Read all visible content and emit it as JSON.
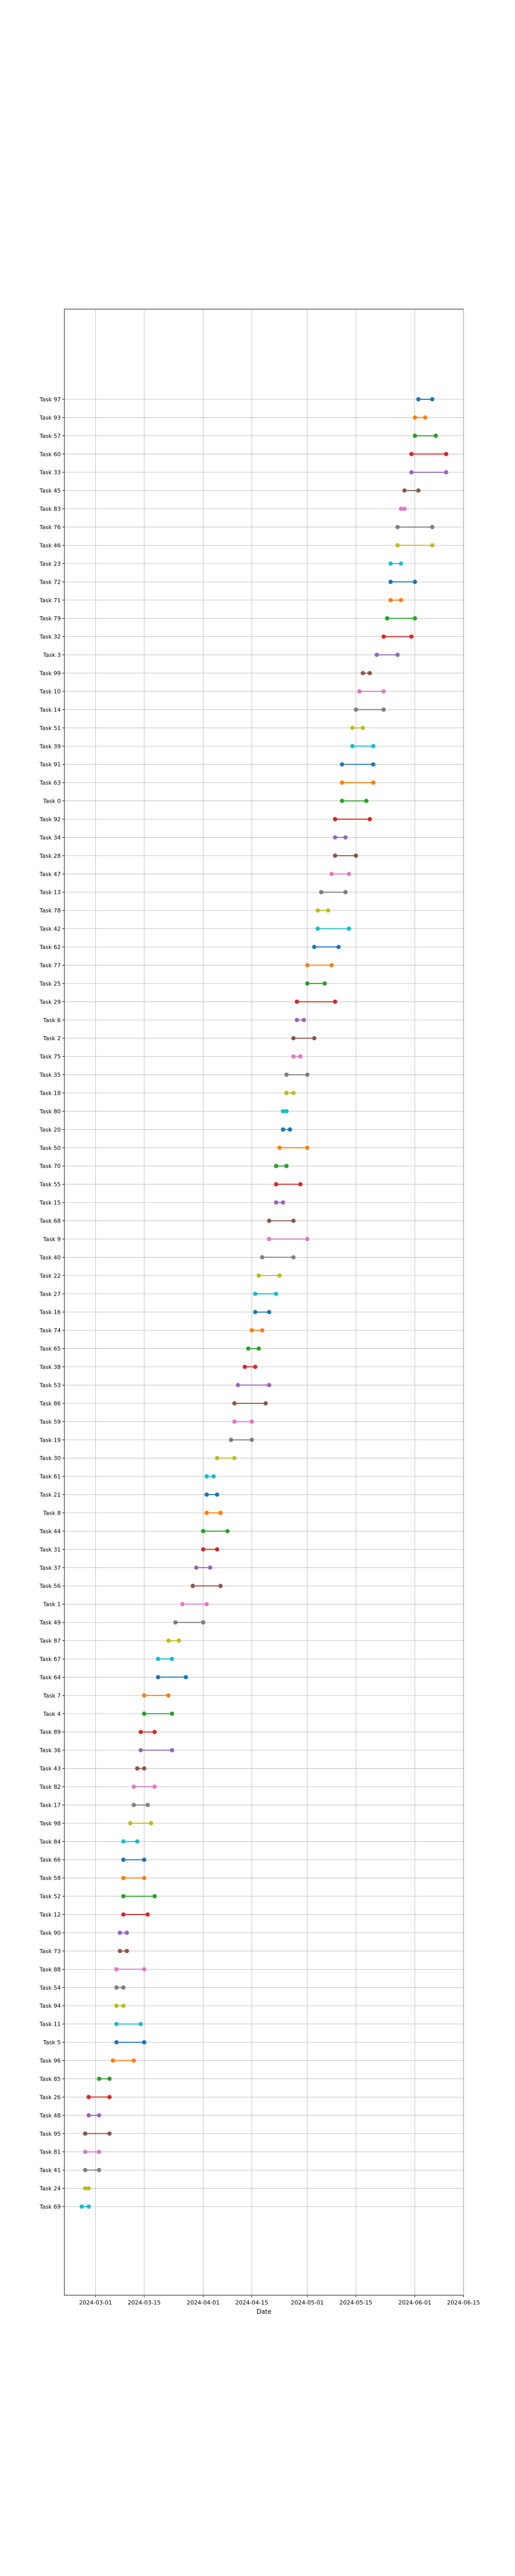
{
  "chart_data": {
    "type": "dumbbell",
    "title": "",
    "xlabel": "Date",
    "ylabel": "",
    "grid": true,
    "x_axis": {
      "type": "date",
      "min": "2024-02-21",
      "max": "2024-06-15",
      "ticks": [
        "2024-03-01",
        "2024-03-15",
        "2024-04-01",
        "2024-04-15",
        "2024-05-01",
        "2024-05-15",
        "2024-06-01",
        "2024-06-15"
      ]
    },
    "color_cycle": [
      "#1f77b4",
      "#ff7f0e",
      "#2ca02c",
      "#d62728",
      "#9467bd",
      "#8c564b",
      "#e377c2",
      "#7f7f7f",
      "#bcbd22",
      "#17becf"
    ],
    "tasks": [
      {
        "name": "Task 97",
        "start": "2024-06-02",
        "end": "2024-06-06"
      },
      {
        "name": "Task 93",
        "start": "2024-06-01",
        "end": "2024-06-04"
      },
      {
        "name": "Task 57",
        "start": "2024-06-01",
        "end": "2024-06-07"
      },
      {
        "name": "Task 60",
        "start": "2024-05-31",
        "end": "2024-06-10"
      },
      {
        "name": "Task 33",
        "start": "2024-05-31",
        "end": "2024-06-10"
      },
      {
        "name": "Task 45",
        "start": "2024-05-29",
        "end": "2024-06-02"
      },
      {
        "name": "Task 83",
        "start": "2024-05-28",
        "end": "2024-05-29"
      },
      {
        "name": "Task 76",
        "start": "2024-05-27",
        "end": "2024-06-06"
      },
      {
        "name": "Task 46",
        "start": "2024-05-27",
        "end": "2024-06-06"
      },
      {
        "name": "Task 23",
        "start": "2024-05-25",
        "end": "2024-05-28"
      },
      {
        "name": "Task 72",
        "start": "2024-05-25",
        "end": "2024-06-01"
      },
      {
        "name": "Task 71",
        "start": "2024-05-25",
        "end": "2024-05-28"
      },
      {
        "name": "Task 79",
        "start": "2024-05-24",
        "end": "2024-06-01"
      },
      {
        "name": "Task 32",
        "start": "2024-05-23",
        "end": "2024-05-31"
      },
      {
        "name": "Task 3",
        "start": "2024-05-21",
        "end": "2024-05-27"
      },
      {
        "name": "Task 99",
        "start": "2024-05-17",
        "end": "2024-05-19"
      },
      {
        "name": "Task 10",
        "start": "2024-05-16",
        "end": "2024-05-23"
      },
      {
        "name": "Task 14",
        "start": "2024-05-15",
        "end": "2024-05-23"
      },
      {
        "name": "Task 51",
        "start": "2024-05-14",
        "end": "2024-05-17"
      },
      {
        "name": "Task 39",
        "start": "2024-05-14",
        "end": "2024-05-20"
      },
      {
        "name": "Task 91",
        "start": "2024-05-11",
        "end": "2024-05-20"
      },
      {
        "name": "Task 63",
        "start": "2024-05-11",
        "end": "2024-05-20"
      },
      {
        "name": "Task 0",
        "start": "2024-05-11",
        "end": "2024-05-18"
      },
      {
        "name": "Task 92",
        "start": "2024-05-09",
        "end": "2024-05-19"
      },
      {
        "name": "Task 34",
        "start": "2024-05-09",
        "end": "2024-05-12"
      },
      {
        "name": "Task 28",
        "start": "2024-05-09",
        "end": "2024-05-15"
      },
      {
        "name": "Task 47",
        "start": "2024-05-08",
        "end": "2024-05-13"
      },
      {
        "name": "Task 13",
        "start": "2024-05-05",
        "end": "2024-05-12"
      },
      {
        "name": "Task 78",
        "start": "2024-05-04",
        "end": "2024-05-07"
      },
      {
        "name": "Task 42",
        "start": "2024-05-04",
        "end": "2024-05-13"
      },
      {
        "name": "Task 62",
        "start": "2024-05-03",
        "end": "2024-05-10"
      },
      {
        "name": "Task 77",
        "start": "2024-05-01",
        "end": "2024-05-08"
      },
      {
        "name": "Task 25",
        "start": "2024-05-01",
        "end": "2024-05-06"
      },
      {
        "name": "Task 29",
        "start": "2024-04-28",
        "end": "2024-05-09"
      },
      {
        "name": "Task 6",
        "start": "2024-04-28",
        "end": "2024-04-30"
      },
      {
        "name": "Task 2",
        "start": "2024-04-27",
        "end": "2024-05-03"
      },
      {
        "name": "Task 75",
        "start": "2024-04-27",
        "end": "2024-04-29"
      },
      {
        "name": "Task 35",
        "start": "2024-04-25",
        "end": "2024-05-01"
      },
      {
        "name": "Task 18",
        "start": "2024-04-25",
        "end": "2024-04-27"
      },
      {
        "name": "Task 80",
        "start": "2024-04-24",
        "end": "2024-04-25"
      },
      {
        "name": "Task 20",
        "start": "2024-04-24",
        "end": "2024-04-26"
      },
      {
        "name": "Task 50",
        "start": "2024-04-23",
        "end": "2024-05-01"
      },
      {
        "name": "Task 70",
        "start": "2024-04-22",
        "end": "2024-04-25"
      },
      {
        "name": "Task 55",
        "start": "2024-04-22",
        "end": "2024-04-29"
      },
      {
        "name": "Task 15",
        "start": "2024-04-22",
        "end": "2024-04-24"
      },
      {
        "name": "Task 68",
        "start": "2024-04-20",
        "end": "2024-04-27"
      },
      {
        "name": "Task 9",
        "start": "2024-04-20",
        "end": "2024-05-01"
      },
      {
        "name": "Task 40",
        "start": "2024-04-18",
        "end": "2024-04-27"
      },
      {
        "name": "Task 22",
        "start": "2024-04-17",
        "end": "2024-04-23"
      },
      {
        "name": "Task 27",
        "start": "2024-04-16",
        "end": "2024-04-22"
      },
      {
        "name": "Task 16",
        "start": "2024-04-16",
        "end": "2024-04-20"
      },
      {
        "name": "Task 74",
        "start": "2024-04-15",
        "end": "2024-04-18"
      },
      {
        "name": "Task 65",
        "start": "2024-04-14",
        "end": "2024-04-17"
      },
      {
        "name": "Task 38",
        "start": "2024-04-13",
        "end": "2024-04-16"
      },
      {
        "name": "Task 53",
        "start": "2024-04-11",
        "end": "2024-04-20"
      },
      {
        "name": "Task 86",
        "start": "2024-04-10",
        "end": "2024-04-19"
      },
      {
        "name": "Task 59",
        "start": "2024-04-10",
        "end": "2024-04-15"
      },
      {
        "name": "Task 19",
        "start": "2024-04-09",
        "end": "2024-04-15"
      },
      {
        "name": "Task 30",
        "start": "2024-04-05",
        "end": "2024-04-10"
      },
      {
        "name": "Task 61",
        "start": "2024-04-02",
        "end": "2024-04-04"
      },
      {
        "name": "Task 21",
        "start": "2024-04-02",
        "end": "2024-04-05"
      },
      {
        "name": "Task 8",
        "start": "2024-04-02",
        "end": "2024-04-06"
      },
      {
        "name": "Task 44",
        "start": "2024-04-01",
        "end": "2024-04-08"
      },
      {
        "name": "Task 31",
        "start": "2024-04-01",
        "end": "2024-04-05"
      },
      {
        "name": "Task 37",
        "start": "2024-03-30",
        "end": "2024-04-03"
      },
      {
        "name": "Task 56",
        "start": "2024-03-29",
        "end": "2024-04-06"
      },
      {
        "name": "Task 1",
        "start": "2024-03-26",
        "end": "2024-04-02"
      },
      {
        "name": "Task 49",
        "start": "2024-03-24",
        "end": "2024-04-01"
      },
      {
        "name": "Task 87",
        "start": "2024-03-22",
        "end": "2024-03-25"
      },
      {
        "name": "Task 67",
        "start": "2024-03-19",
        "end": "2024-03-23"
      },
      {
        "name": "Task 64",
        "start": "2024-03-19",
        "end": "2024-03-27"
      },
      {
        "name": "Task 7",
        "start": "2024-03-15",
        "end": "2024-03-22"
      },
      {
        "name": "Task 4",
        "start": "2024-03-15",
        "end": "2024-03-23"
      },
      {
        "name": "Task 89",
        "start": "2024-03-14",
        "end": "2024-03-18"
      },
      {
        "name": "Task 36",
        "start": "2024-03-14",
        "end": "2024-03-23"
      },
      {
        "name": "Task 43",
        "start": "2024-03-13",
        "end": "2024-03-15"
      },
      {
        "name": "Task 82",
        "start": "2024-03-12",
        "end": "2024-03-18"
      },
      {
        "name": "Task 17",
        "start": "2024-03-12",
        "end": "2024-03-16"
      },
      {
        "name": "Task 98",
        "start": "2024-03-11",
        "end": "2024-03-17"
      },
      {
        "name": "Task 84",
        "start": "2024-03-09",
        "end": "2024-03-13"
      },
      {
        "name": "Task 66",
        "start": "2024-03-09",
        "end": "2024-03-15"
      },
      {
        "name": "Task 58",
        "start": "2024-03-09",
        "end": "2024-03-15"
      },
      {
        "name": "Task 52",
        "start": "2024-03-09",
        "end": "2024-03-18"
      },
      {
        "name": "Task 12",
        "start": "2024-03-09",
        "end": "2024-03-16"
      },
      {
        "name": "Task 90",
        "start": "2024-03-08",
        "end": "2024-03-10"
      },
      {
        "name": "Task 73",
        "start": "2024-03-08",
        "end": "2024-03-10"
      },
      {
        "name": "Task 88",
        "start": "2024-03-07",
        "end": "2024-03-15"
      },
      {
        "name": "Task 54",
        "start": "2024-03-07",
        "end": "2024-03-09"
      },
      {
        "name": "Task 94",
        "start": "2024-03-07",
        "end": "2024-03-09"
      },
      {
        "name": "Task 11",
        "start": "2024-03-07",
        "end": "2024-03-14"
      },
      {
        "name": "Task 5",
        "start": "2024-03-07",
        "end": "2024-03-15"
      },
      {
        "name": "Task 96",
        "start": "2024-03-06",
        "end": "2024-03-12"
      },
      {
        "name": "Task 85",
        "start": "2024-03-02",
        "end": "2024-03-05"
      },
      {
        "name": "Task 26",
        "start": "2024-02-28",
        "end": "2024-03-05"
      },
      {
        "name": "Task 48",
        "start": "2024-02-28",
        "end": "2024-03-02"
      },
      {
        "name": "Task 95",
        "start": "2024-02-27",
        "end": "2024-03-05"
      },
      {
        "name": "Task 81",
        "start": "2024-02-27",
        "end": "2024-03-02"
      },
      {
        "name": "Task 41",
        "start": "2024-02-27",
        "end": "2024-03-02"
      },
      {
        "name": "Task 24",
        "start": "2024-02-27",
        "end": "2024-02-28"
      },
      {
        "name": "Task 69",
        "start": "2024-02-26",
        "end": "2024-02-28"
      }
    ]
  }
}
